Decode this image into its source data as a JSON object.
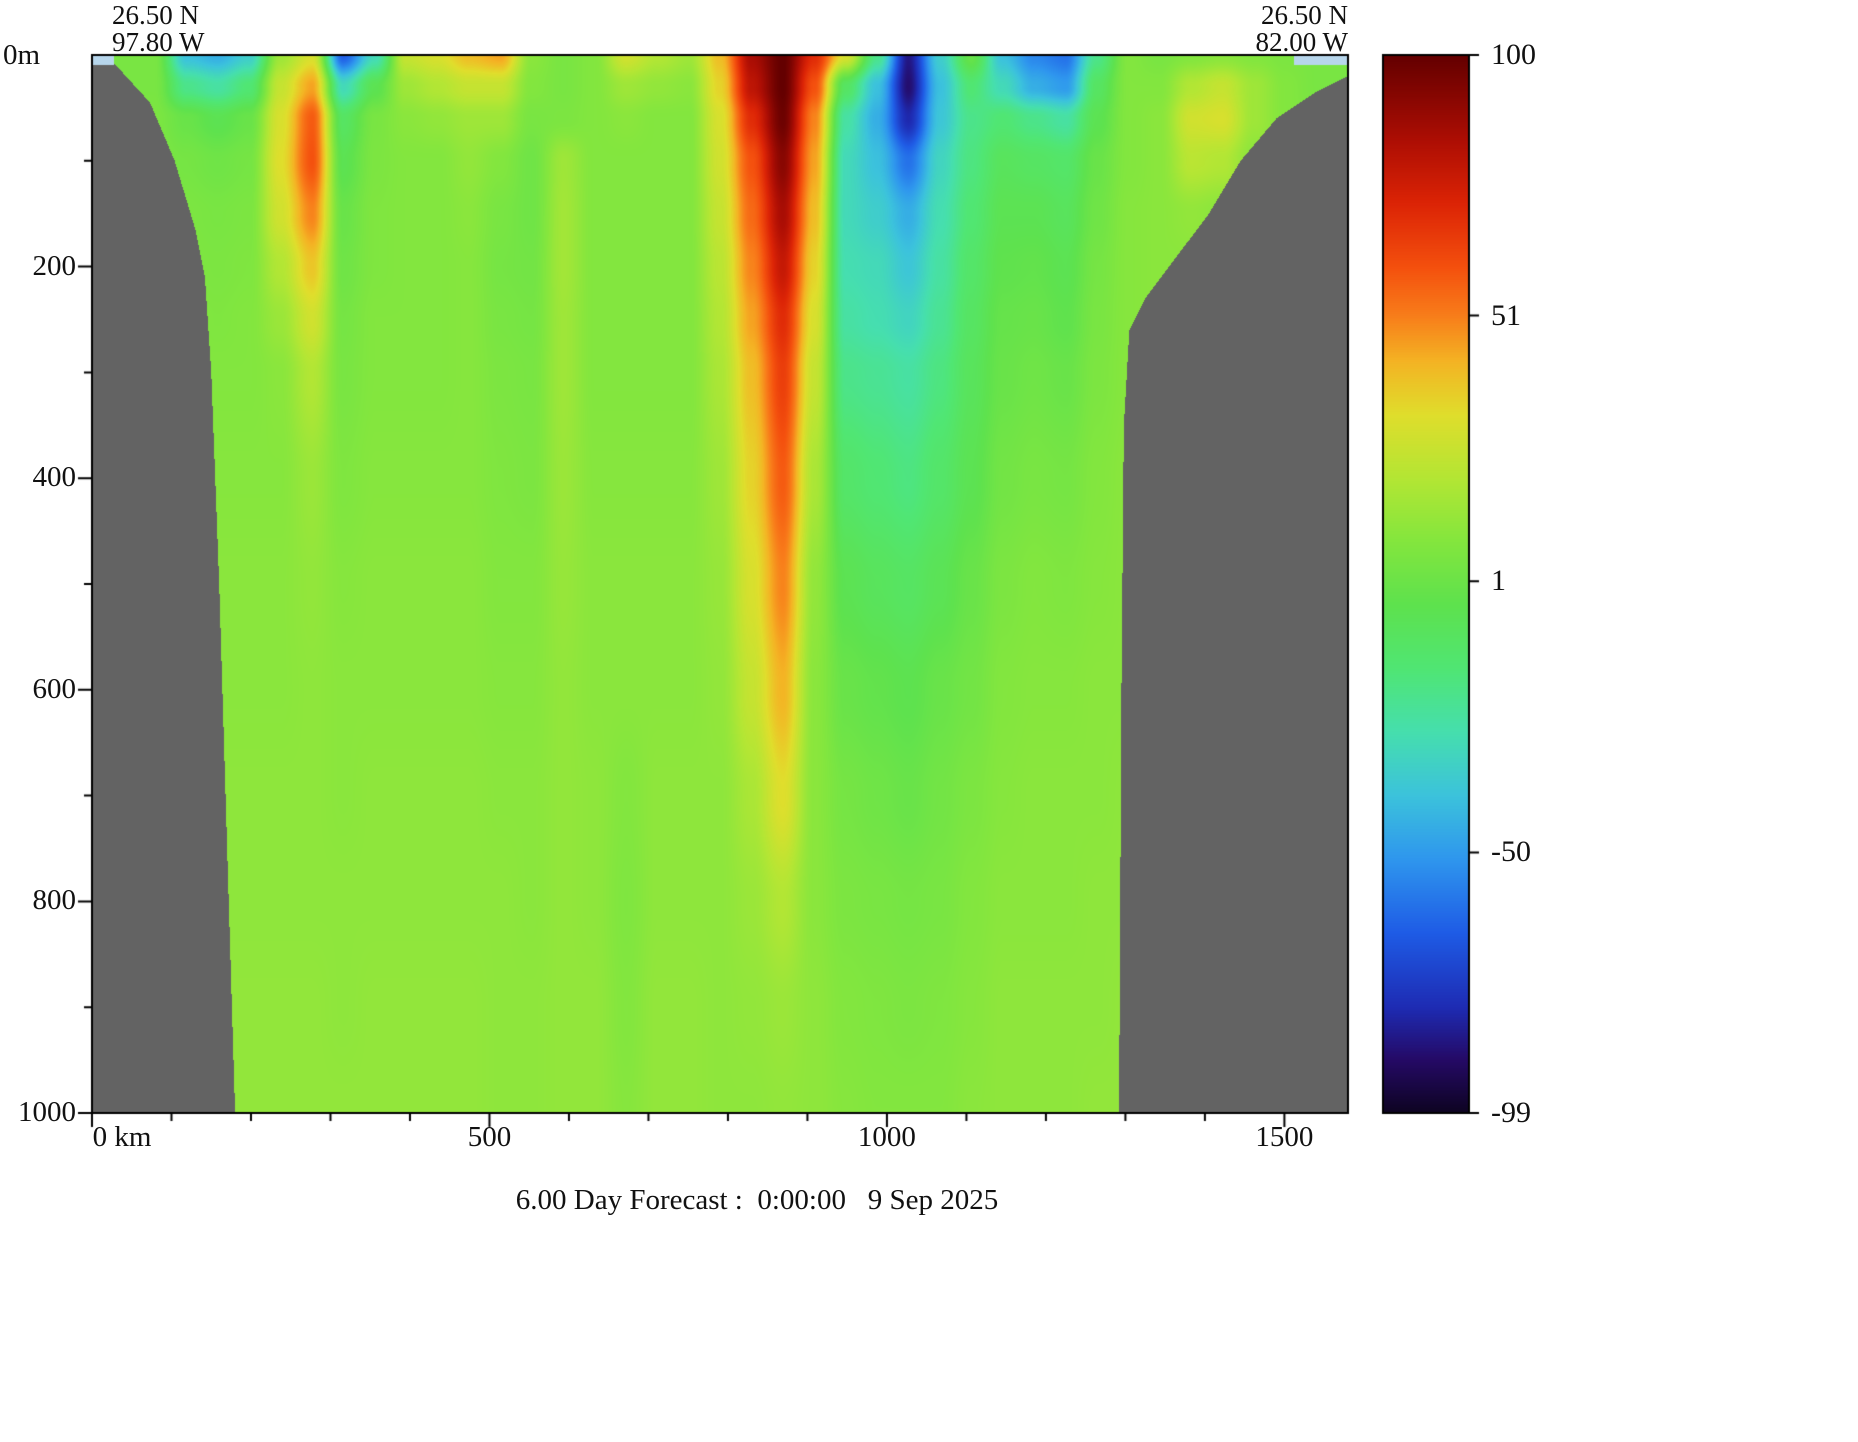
{
  "header": {
    "start_lat": "26.50 N",
    "start_lon": "97.80 W",
    "end_lat": "26.50 N",
    "end_lon": "82.00 W"
  },
  "axes": {
    "y_zero_label": "0m",
    "x_ticks": [
      {
        "value": 0,
        "label": "0 km"
      },
      {
        "value": 500,
        "label": "500"
      },
      {
        "value": 1000,
        "label": "1000"
      },
      {
        "value": 1500,
        "label": "1500"
      }
    ],
    "x_minor_step": 100,
    "y_ticks": [
      {
        "value": 200,
        "label": "200"
      },
      {
        "value": 400,
        "label": "400"
      },
      {
        "value": 600,
        "label": "600"
      },
      {
        "value": 800,
        "label": "800"
      },
      {
        "value": 1000,
        "label": "1000"
      }
    ],
    "y_minor_step": 100
  },
  "colorbar": {
    "ticks": [
      {
        "value": 100,
        "label": "100"
      },
      {
        "value": 51,
        "label": "51"
      },
      {
        "value": 1,
        "label": "1"
      },
      {
        "value": -50,
        "label": "-50"
      },
      {
        "value": -99,
        "label": "-99"
      }
    ]
  },
  "caption": "6.00 Day Forecast :  0:00:00   9 Sep 2025",
  "chart_data": {
    "type": "heatmap",
    "title": "6.00 Day Forecast :  0:00:00   9 Sep 2025",
    "x_unit": "km",
    "x_range": [
      0,
      1580
    ],
    "depth_range_m": [
      0,
      1000
    ],
    "value_range": [
      -99,
      100
    ],
    "section_start": {
      "lat": "26.50 N",
      "lon": "97.80 W"
    },
    "section_end": {
      "lat": "26.50 N",
      "lon": "82.00 W"
    },
    "land_color": "#636363",
    "shelf_strip_color": "#b7d6ec",
    "shelf_strips": [
      {
        "km_min": 0,
        "km_max": 28,
        "depth_max_m": 9
      },
      {
        "km_min": 1512,
        "km_max": 1580,
        "depth_max_m": 9
      }
    ],
    "left_land_boundary_km_by_depth": [
      [
        0,
        22
      ],
      [
        8,
        28
      ],
      [
        45,
        73
      ],
      [
        100,
        104
      ],
      [
        165,
        130
      ],
      [
        210,
        142
      ],
      [
        300,
        150
      ],
      [
        500,
        160
      ],
      [
        700,
        168
      ],
      [
        1000,
        180
      ]
    ],
    "right_land_boundary_km_by_depth": [
      [
        0,
        1580
      ],
      [
        20,
        1580
      ],
      [
        35,
        1540
      ],
      [
        60,
        1490
      ],
      [
        100,
        1445
      ],
      [
        150,
        1405
      ],
      [
        200,
        1355
      ],
      [
        230,
        1325
      ],
      [
        260,
        1305
      ],
      [
        350,
        1298
      ],
      [
        600,
        1295
      ],
      [
        1000,
        1292
      ]
    ],
    "colormap": [
      {
        "t": 0.0,
        "color": "#0e0422"
      },
      {
        "t": 0.05,
        "color": "#250a66"
      },
      {
        "t": 0.1,
        "color": "#1e2cb4"
      },
      {
        "t": 0.17,
        "color": "#1f5ce6"
      },
      {
        "t": 0.24,
        "color": "#2f97ee"
      },
      {
        "t": 0.3,
        "color": "#3cc3dc"
      },
      {
        "t": 0.36,
        "color": "#46dfae"
      },
      {
        "t": 0.42,
        "color": "#50e674"
      },
      {
        "t": 0.48,
        "color": "#5ee24e"
      },
      {
        "t": 0.54,
        "color": "#84e63e"
      },
      {
        "t": 0.6,
        "color": "#b4e634"
      },
      {
        "t": 0.66,
        "color": "#e0de2c"
      },
      {
        "t": 0.71,
        "color": "#f4b424"
      },
      {
        "t": 0.755,
        "color": "#f87c1a"
      },
      {
        "t": 0.8,
        "color": "#f4500e"
      },
      {
        "t": 0.86,
        "color": "#dc2406"
      },
      {
        "t": 0.92,
        "color": "#ad0e04"
      },
      {
        "t": 1.0,
        "color": "#640000"
      }
    ],
    "x_samples_km": [
      0,
      40,
      79,
      119,
      158,
      198,
      237,
      277,
      316,
      356,
      395,
      435,
      474,
      514,
      553,
      593,
      632,
      672,
      711,
      751,
      790,
      830,
      869,
      909,
      948,
      988,
      1027,
      1067,
      1106,
      1146,
      1185,
      1225,
      1264,
      1304,
      1343,
      1383,
      1422,
      1462,
      1501,
      1541,
      1580
    ],
    "depth_samples_m": [
      0,
      30,
      60,
      100,
      150,
      200,
      250,
      300,
      400,
      500,
      600,
      700,
      800,
      900,
      1000
    ],
    "values": [
      [
        5,
        5,
        5,
        -40,
        -45,
        -35,
        15,
        30,
        -65,
        -30,
        25,
        30,
        40,
        45,
        10,
        5,
        8,
        28,
        20,
        15,
        40,
        85,
        100,
        70,
        30,
        -20,
        -85,
        -35,
        0,
        -40,
        -55,
        -60,
        -20,
        8,
        5,
        8,
        10,
        8,
        6,
        5,
        5
      ],
      [
        5,
        5,
        5,
        -20,
        -25,
        -15,
        25,
        45,
        -30,
        -5,
        15,
        20,
        25,
        25,
        8,
        5,
        8,
        15,
        12,
        10,
        35,
        80,
        100,
        60,
        -10,
        -40,
        -88,
        -40,
        -15,
        -30,
        -45,
        -50,
        -10,
        8,
        8,
        20,
        25,
        15,
        8,
        5,
        5
      ],
      [
        6,
        6,
        6,
        0,
        -5,
        0,
        30,
        58,
        -10,
        5,
        10,
        12,
        15,
        15,
        5,
        6,
        8,
        10,
        8,
        8,
        30,
        70,
        98,
        50,
        -25,
        -45,
        -80,
        -38,
        -20,
        -15,
        -20,
        -25,
        -5,
        8,
        10,
        28,
        30,
        15,
        8,
        6,
        6
      ],
      [
        6,
        6,
        6,
        4,
        2,
        4,
        32,
        60,
        -5,
        6,
        8,
        8,
        12,
        8,
        2,
        15,
        8,
        8,
        8,
        8,
        28,
        60,
        92,
        45,
        -30,
        -40,
        -60,
        -32,
        -18,
        -8,
        -10,
        -12,
        0,
        8,
        10,
        22,
        20,
        10,
        8,
        6,
        6
      ],
      [
        7,
        7,
        7,
        6,
        5,
        6,
        28,
        50,
        0,
        7,
        8,
        8,
        10,
        5,
        2,
        16,
        8,
        8,
        8,
        8,
        25,
        55,
        85,
        40,
        -30,
        -35,
        -45,
        -28,
        -15,
        -5,
        -5,
        -8,
        2,
        9,
        10,
        12,
        10,
        8,
        8,
        7,
        7
      ],
      [
        7,
        7,
        7,
        7,
        6,
        7,
        20,
        38,
        2,
        7,
        8,
        8,
        9,
        4,
        3,
        16,
        8,
        8,
        8,
        8,
        22,
        50,
        78,
        35,
        -28,
        -30,
        -38,
        -25,
        -12,
        -3,
        -2,
        -5,
        4,
        9,
        10,
        10,
        9,
        8,
        8,
        7,
        7
      ],
      [
        8,
        8,
        8,
        8,
        7,
        8,
        14,
        28,
        4,
        8,
        8,
        8,
        9,
        5,
        4,
        15,
        8,
        8,
        8,
        8,
        20,
        45,
        70,
        30,
        -25,
        -28,
        -32,
        -22,
        -10,
        -1,
        0,
        -3,
        5,
        9,
        10,
        10,
        9,
        9,
        8,
        8,
        8
      ],
      [
        8,
        8,
        8,
        8,
        8,
        8,
        10,
        20,
        5,
        8,
        8,
        8,
        9,
        6,
        5,
        15,
        8,
        8,
        8,
        8,
        18,
        40,
        65,
        25,
        -20,
        -22,
        -25,
        -18,
        -8,
        0,
        2,
        0,
        6,
        9,
        10,
        9,
        9,
        9,
        8,
        8,
        8
      ],
      [
        9,
        9,
        9,
        9,
        9,
        9,
        9,
        14,
        7,
        9,
        9,
        9,
        9,
        7,
        6,
        14,
        9,
        9,
        9,
        9,
        15,
        35,
        58,
        18,
        -12,
        -15,
        -18,
        -12,
        -5,
        3,
        5,
        4,
        8,
        10,
        10,
        10,
        9,
        9,
        9,
        9,
        9
      ],
      [
        10,
        10,
        10,
        10,
        10,
        10,
        10,
        12,
        9,
        10,
        10,
        10,
        10,
        8,
        8,
        13,
        10,
        10,
        10,
        10,
        13,
        30,
        50,
        12,
        -5,
        -8,
        -10,
        -6,
        0,
        6,
        8,
        7,
        9,
        10,
        11,
        10,
        10,
        10,
        10,
        10,
        10
      ],
      [
        10,
        10,
        10,
        10,
        10,
        10,
        10,
        11,
        10,
        10,
        10,
        10,
        10,
        9,
        9,
        12,
        10,
        10,
        10,
        10,
        12,
        25,
        42,
        10,
        0,
        -2,
        -4,
        0,
        3,
        8,
        9,
        9,
        10,
        10,
        11,
        10,
        10,
        10,
        10,
        10,
        10
      ],
      [
        11,
        11,
        11,
        11,
        11,
        11,
        11,
        11,
        10,
        11,
        11,
        11,
        11,
        10,
        10,
        12,
        11,
        8,
        11,
        11,
        11,
        18,
        32,
        10,
        4,
        2,
        0,
        3,
        6,
        9,
        10,
        10,
        10,
        11,
        11,
        11,
        11,
        11,
        11,
        11,
        11
      ],
      [
        11,
        11,
        11,
        11,
        11,
        11,
        11,
        11,
        11,
        11,
        11,
        11,
        11,
        11,
        10,
        12,
        11,
        7,
        11,
        11,
        11,
        14,
        20,
        10,
        6,
        5,
        4,
        5,
        8,
        10,
        10,
        10,
        11,
        11,
        11,
        11,
        11,
        11,
        11,
        11,
        11
      ],
      [
        12,
        12,
        12,
        12,
        12,
        12,
        12,
        12,
        11,
        12,
        12,
        12,
        12,
        11,
        11,
        12,
        12,
        8,
        12,
        12,
        11,
        12,
        14,
        11,
        8,
        7,
        6,
        7,
        9,
        11,
        11,
        11,
        11,
        12,
        12,
        12,
        12,
        12,
        12,
        12,
        12
      ],
      [
        12,
        12,
        12,
        12,
        12,
        12,
        12,
        12,
        12,
        12,
        12,
        12,
        12,
        11,
        11,
        12,
        12,
        9,
        12,
        12,
        11,
        11,
        12,
        11,
        9,
        8,
        8,
        8,
        10,
        11,
        11,
        11,
        12,
        12,
        12,
        12,
        12,
        12,
        12,
        12,
        12
      ]
    ],
    "x_tick_labels": [
      "0 km",
      "500",
      "1000",
      "1500"
    ],
    "y_tick_labels": [
      "200",
      "400",
      "600",
      "800",
      "1000"
    ],
    "colorbar_tick_labels": [
      "100",
      "51",
      "1",
      "-50",
      "-99"
    ]
  }
}
